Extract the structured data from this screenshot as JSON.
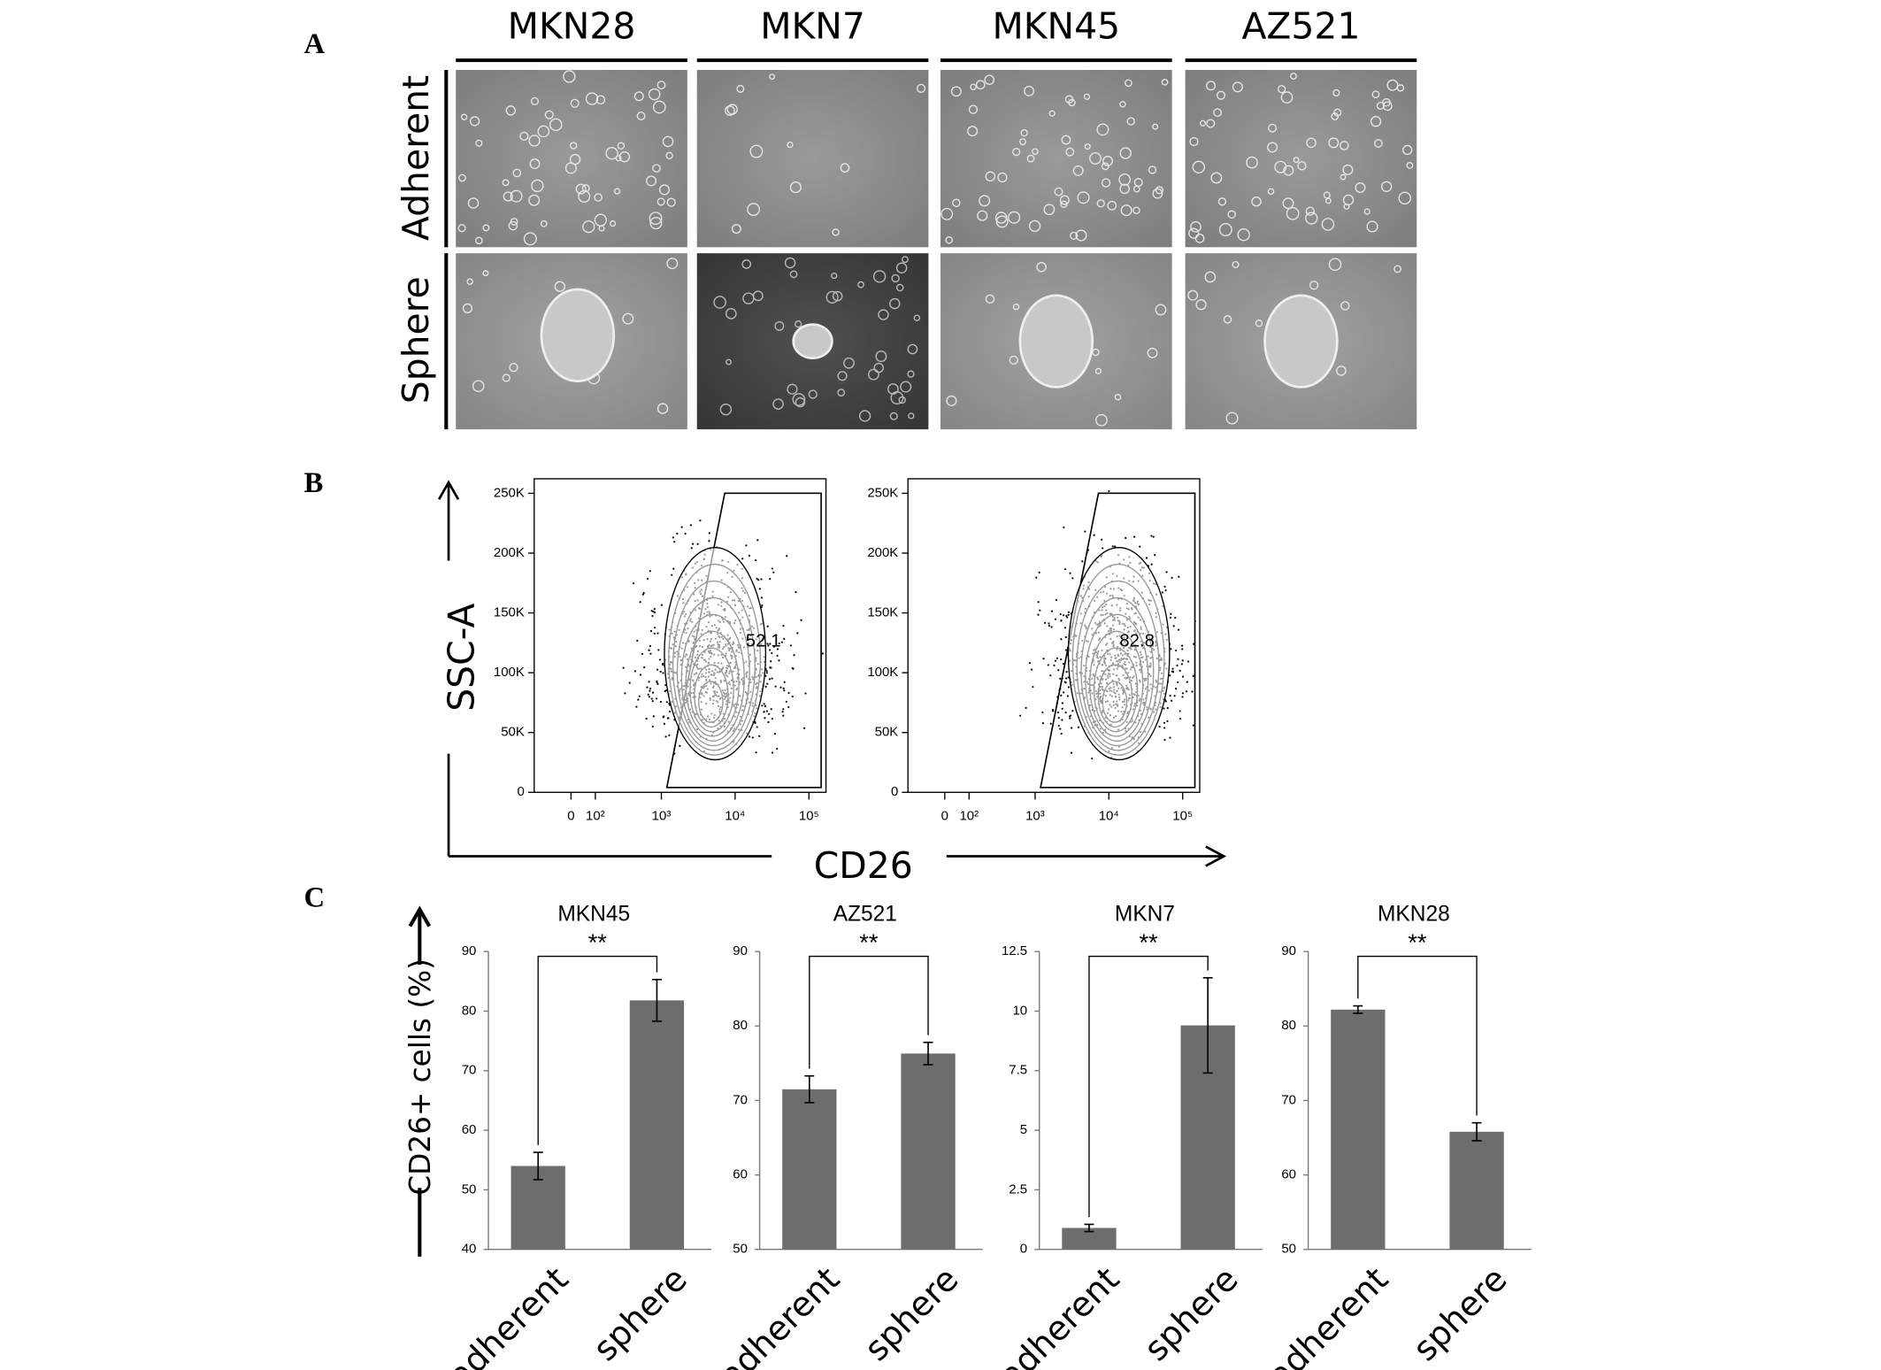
{
  "panel_labels": [
    "A",
    "B",
    "C"
  ],
  "panel_a": {
    "columns": [
      "MKN28",
      "MKN7",
      "MKN45",
      "AZ521"
    ],
    "rows": [
      "Adherent",
      "Sphere"
    ]
  },
  "panel_b": {
    "xlabel": "CD26",
    "ylabel": "SSC-A"
  },
  "panel_c": {
    "ylabel": "CD26+ cells (%)"
  },
  "chart_data": [
    {
      "type": "flow",
      "xscale": "asinh",
      "xlim": [
        -170,
        170000
      ],
      "ylim": [
        0,
        262144
      ],
      "xticks": [
        0,
        {
          "value": 100,
          "label": "10²"
        },
        {
          "value": 1000,
          "label": "10³"
        },
        {
          "value": 10000,
          "label": "10⁴"
        },
        {
          "value": 100000,
          "label": "10⁵"
        }
      ],
      "yticks": [
        0,
        {
          "value": 50000,
          "label": "50K"
        },
        {
          "value": 100000,
          "label": "100K"
        },
        {
          "value": 150000,
          "label": "150K"
        },
        {
          "value": 200000,
          "label": "200K"
        },
        {
          "value": 250000,
          "label": "250K"
        }
      ],
      "gate_percent": 52.1
    },
    {
      "type": "flow",
      "xscale": "asinh",
      "xlim": [
        -170,
        170000
      ],
      "ylim": [
        0,
        262144
      ],
      "xticks": [
        0,
        {
          "value": 100,
          "label": "10²"
        },
        {
          "value": 1000,
          "label": "10³"
        },
        {
          "value": 10000,
          "label": "10⁴"
        },
        {
          "value": 100000,
          "label": "10⁵"
        }
      ],
      "yticks": [
        0,
        {
          "value": 50000,
          "label": "50K"
        },
        {
          "value": 100000,
          "label": "100K"
        },
        {
          "value": 150000,
          "label": "150K"
        },
        {
          "value": 200000,
          "label": "200K"
        },
        {
          "value": 250000,
          "label": "250K"
        }
      ],
      "gate_percent": 82.8
    },
    {
      "type": "bar",
      "title": "MKN45",
      "categories": [
        "adherent",
        "sphere"
      ],
      "values": [
        54,
        81.8
      ],
      "errors": [
        2.3,
        3.5
      ],
      "color": "#6d6d6d",
      "ylim": [
        40,
        90
      ],
      "yticks": [
        40,
        50,
        60,
        70,
        80,
        90
      ],
      "significance": "**"
    },
    {
      "type": "bar",
      "title": "AZ521",
      "categories": [
        "adherent",
        "sphere"
      ],
      "values": [
        71.5,
        76.3
      ],
      "errors": [
        1.8,
        1.5
      ],
      "color": "#6d6d6d",
      "ylim": [
        50,
        90
      ],
      "yticks": [
        50,
        60,
        70,
        80,
        90
      ],
      "significance": "**"
    },
    {
      "type": "bar",
      "title": "MKN7",
      "categories": [
        "adherent",
        "sphere"
      ],
      "values": [
        0.9,
        9.4
      ],
      "errors": [
        0.15,
        2.0
      ],
      "color": "#6d6d6d",
      "ylim": [
        0,
        12.5
      ],
      "yticks": [
        0,
        2.5,
        5,
        7.5,
        10,
        12.5
      ],
      "significance": "**"
    },
    {
      "type": "bar",
      "title": "MKN28",
      "categories": [
        "adherent",
        "sphere"
      ],
      "values": [
        82.2,
        65.8
      ],
      "errors": [
        0.5,
        1.2
      ],
      "color": "#6d6d6d",
      "ylim": [
        50,
        90
      ],
      "yticks": [
        50,
        60,
        70,
        80,
        90
      ],
      "significance": "**"
    }
  ]
}
